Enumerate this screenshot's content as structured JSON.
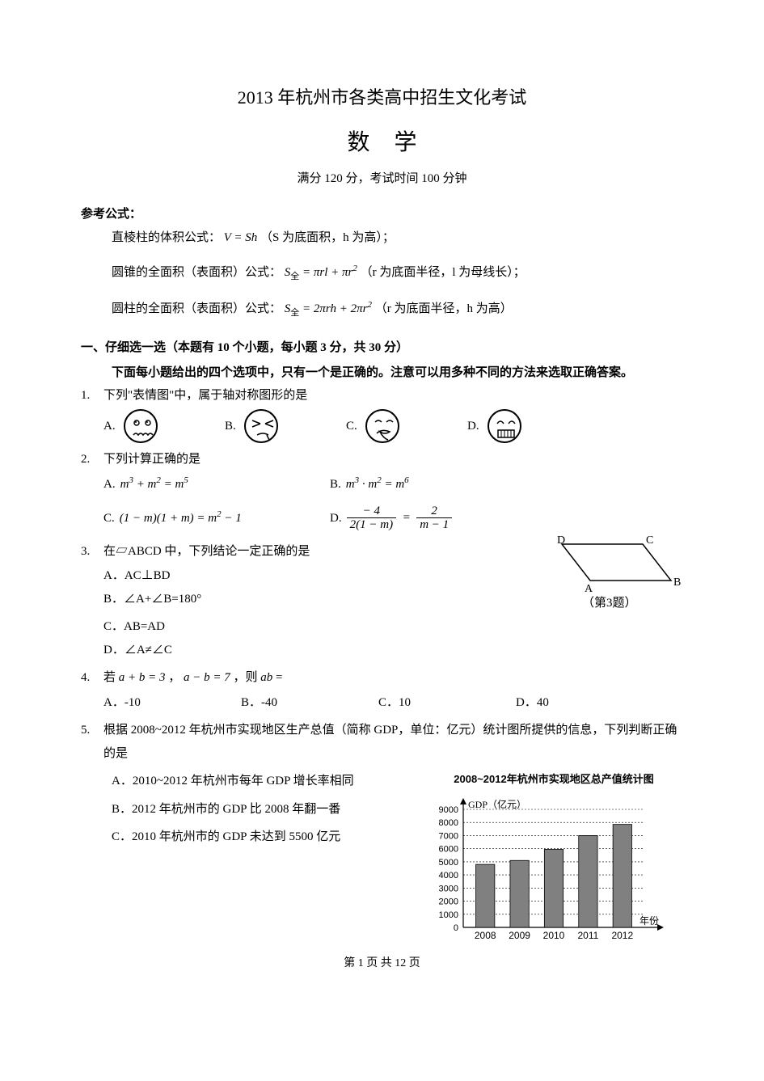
{
  "header": {
    "main_title": "2013 年杭州市各类高中招生文化考试",
    "subject": "数学",
    "info": "满分 120 分，考试时间 100 分钟"
  },
  "reference": {
    "heading": "参考公式：",
    "line1_pre": "直棱柱的体积公式：",
    "line1_formula": "V = Sh",
    "line1_post": "（S 为底面积，h 为高）；",
    "line2_pre": "圆锥的全面积（表面积）公式：",
    "line2_post": "（r 为底面半径，l 为母线长）；",
    "line3_pre": "圆柱的全面积（表面积）公式：",
    "line3_post": "（r 为底面半径，h 为高）"
  },
  "section1": {
    "heading": "一、仔细选一选（本题有 10 个小题，每小题 3 分，共 30 分）",
    "sub": "下面每小题给出的四个选项中，只有一个是正确的。注意可以用多种不同的方法来选取正确答案。"
  },
  "q1": {
    "num": "1.",
    "text": "下列\"表情图\"中，属于轴对称图形的是",
    "opts": {
      "A": "A.",
      "B": "B.",
      "C": "C.",
      "D": "D."
    }
  },
  "q2": {
    "num": "2.",
    "text": "下列计算正确的是",
    "opts": {
      "A": "A.",
      "B": "B.",
      "C": "C.",
      "D": "D."
    }
  },
  "q3": {
    "num": "3.",
    "text": "在▱ABCD 中，下列结论一定正确的是",
    "A": "A．AC⊥BD",
    "B": "B．∠A+∠B=180°",
    "C": "C．AB=AD",
    "D": "D．∠A≠∠C",
    "fig": "（第3题）"
  },
  "q4": {
    "num": "4.",
    "pre": "若 ",
    "mid": "，",
    "post": "，则 ",
    "eq": " =",
    "A": "A．-10",
    "B": "B．-40",
    "C": "C．10",
    "D": "D．40"
  },
  "q5": {
    "num": "5.",
    "text": "根据 2008~2012 年杭州市实现地区生产总值（简称 GDP，单位：亿元）统计图所提供的信息，下列判断正确的是",
    "A": "A．2010~2012 年杭州市每年 GDP 增长率相同",
    "B": "B．2012 年杭州市的 GDP 比 2008 年翻一番",
    "C": "C．2010 年杭州市的 GDP 未达到 5500 亿元",
    "chart": {
      "title": "2008~2012年杭州市实现地区总产值统计图",
      "ylabel": "GDP（亿元）",
      "xlabel": "年份",
      "years": [
        "2008",
        "2009",
        "2010",
        "2011",
        "2012"
      ],
      "values": [
        4800,
        5100,
        5950,
        7000,
        7850
      ],
      "ymax": 9000,
      "ystep": 1000,
      "bar_color": "#808080",
      "grid_color": "#000000",
      "bg_color": "#ffffff"
    }
  },
  "footer": {
    "pre": "第 ",
    "cur": "1",
    "mid": " 页 共 ",
    "total": "12",
    "post": " 页"
  }
}
